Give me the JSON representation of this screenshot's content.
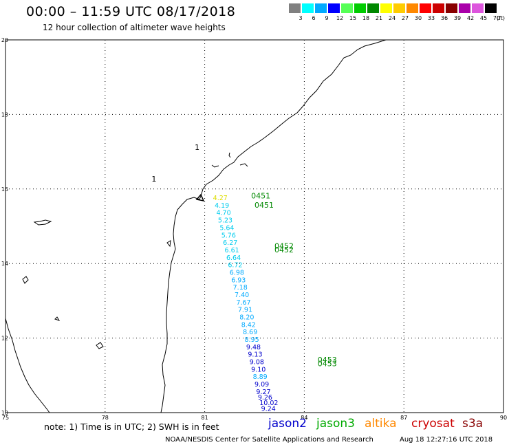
{
  "header": {
    "title": "00:00 – 11:59 UTC 08/17/2018",
    "subtitle": "12 hour collection of altimeter wave heights"
  },
  "legend": {
    "unit": "(ft)",
    "bins": [
      {
        "label": "3",
        "color": "#808080"
      },
      {
        "label": "6",
        "color": "#00ffff"
      },
      {
        "label": "9",
        "color": "#00aaff"
      },
      {
        "label": "12",
        "color": "#0000ff"
      },
      {
        "label": "15",
        "color": "#55ff55"
      },
      {
        "label": "18",
        "color": "#00cc00"
      },
      {
        "label": "21",
        "color": "#008800"
      },
      {
        "label": "24",
        "color": "#ffff00"
      },
      {
        "label": "27",
        "color": "#ffcc00"
      },
      {
        "label": "30",
        "color": "#ff8800"
      },
      {
        "label": "33",
        "color": "#ff0000"
      },
      {
        "label": "36",
        "color": "#cc0000"
      },
      {
        "label": "39",
        "color": "#880000"
      },
      {
        "label": "42",
        "color": "#aa00aa"
      },
      {
        "label": "45",
        "color": "#dd55dd"
      },
      {
        "label": "70",
        "color": "#000000"
      }
    ]
  },
  "map": {
    "lon_range": [
      75,
      90
    ],
    "lat_range": [
      10,
      20
    ],
    "lon_ticks": [
      "75",
      "78",
      "81",
      "84",
      "87",
      "90"
    ],
    "lat_ticks": [
      "10",
      "12",
      "14",
      "16",
      "18",
      "20"
    ],
    "grid": "dotted",
    "track_labels": [
      {
        "text": "0451",
        "lon": 82.4,
        "lat": 15.75,
        "color": "#008800"
      },
      {
        "text": "0451",
        "lon": 82.5,
        "lat": 15.5,
        "color": "#008800"
      },
      {
        "text": "0452",
        "lon": 83.1,
        "lat": 14.4,
        "color": "#008800"
      },
      {
        "text": "0452",
        "lon": 83.1,
        "lat": 14.3,
        "color": "#008800"
      },
      {
        "text": "0453",
        "lon": 84.4,
        "lat": 11.35,
        "color": "#008800"
      },
      {
        "text": "0453",
        "lon": 84.4,
        "lat": 11.25,
        "color": "#008800"
      }
    ],
    "point_label": {
      "text": "1",
      "lon": 79.4,
      "lat": 16.2
    }
  },
  "track": {
    "satellite": "jason2",
    "points": [
      {
        "lon": 81.25,
        "lat": 15.7,
        "value": "4.27",
        "color": "#dddd00"
      },
      {
        "lon": 81.3,
        "lat": 15.5,
        "value": "4.19",
        "color": "#00ccee"
      },
      {
        "lon": 81.35,
        "lat": 15.3,
        "value": "4.70",
        "color": "#00ccee"
      },
      {
        "lon": 81.4,
        "lat": 15.1,
        "value": "5.23",
        "color": "#00ccee"
      },
      {
        "lon": 81.45,
        "lat": 14.9,
        "value": "5.64",
        "color": "#00ccee"
      },
      {
        "lon": 81.5,
        "lat": 14.7,
        "value": "5.76",
        "color": "#00ccee"
      },
      {
        "lon": 81.55,
        "lat": 14.5,
        "value": "6.27",
        "color": "#00ccee"
      },
      {
        "lon": 81.6,
        "lat": 14.3,
        "value": "6.61",
        "color": "#00ccee"
      },
      {
        "lon": 81.65,
        "lat": 14.1,
        "value": "6.64",
        "color": "#00ccee"
      },
      {
        "lon": 81.7,
        "lat": 13.9,
        "value": "6.72",
        "color": "#00ccee"
      },
      {
        "lon": 81.75,
        "lat": 13.7,
        "value": "6.98",
        "color": "#00aaff"
      },
      {
        "lon": 81.8,
        "lat": 13.5,
        "value": "6.93",
        "color": "#00aaff"
      },
      {
        "lon": 81.85,
        "lat": 13.3,
        "value": "7.18",
        "color": "#00aaff"
      },
      {
        "lon": 81.9,
        "lat": 13.1,
        "value": "7.40",
        "color": "#00aaff"
      },
      {
        "lon": 81.95,
        "lat": 12.9,
        "value": "7.67",
        "color": "#00aaff"
      },
      {
        "lon": 82.0,
        "lat": 12.7,
        "value": "7.91",
        "color": "#00aaff"
      },
      {
        "lon": 82.05,
        "lat": 12.5,
        "value": "8.20",
        "color": "#00aaff"
      },
      {
        "lon": 82.1,
        "lat": 12.3,
        "value": "8.42",
        "color": "#00aaff"
      },
      {
        "lon": 82.15,
        "lat": 12.1,
        "value": "8.69",
        "color": "#00aaff"
      },
      {
        "lon": 82.2,
        "lat": 11.9,
        "value": "8.95",
        "color": "#00aaff"
      },
      {
        "lon": 82.25,
        "lat": 11.7,
        "value": "9.48",
        "color": "#0000cc"
      },
      {
        "lon": 82.3,
        "lat": 11.5,
        "value": "9.13",
        "color": "#0000cc"
      },
      {
        "lon": 82.35,
        "lat": 11.3,
        "value": "9.08",
        "color": "#0000cc"
      },
      {
        "lon": 82.4,
        "lat": 11.1,
        "value": "9.10",
        "color": "#0000cc"
      },
      {
        "lon": 82.45,
        "lat": 10.9,
        "value": "8.89",
        "color": "#00aaff"
      },
      {
        "lon": 82.5,
        "lat": 10.7,
        "value": "9.09",
        "color": "#0000cc"
      },
      {
        "lon": 82.55,
        "lat": 10.5,
        "value": "9.27",
        "color": "#0000cc"
      },
      {
        "lon": 82.6,
        "lat": 10.35,
        "value": "9.26",
        "color": "#0000cc"
      },
      {
        "lon": 82.65,
        "lat": 10.2,
        "value": "10.02",
        "color": "#0000cc"
      },
      {
        "lon": 82.7,
        "lat": 10.05,
        "value": "9.24",
        "color": "#0000cc"
      }
    ]
  },
  "footer": {
    "note": "note:  1) Time is in UTC;  2) SWH is in feet",
    "satellites": [
      {
        "name": "jason2",
        "color": "#0000cc"
      },
      {
        "name": "jason3",
        "color": "#00aa00"
      },
      {
        "name": "altika",
        "color": "#ff8800"
      },
      {
        "name": "cryosat",
        "color": "#cc0000"
      },
      {
        "name": "s3a",
        "color": "#880000"
      }
    ],
    "credit": "NOAA/NESDIS Center for Satellite Applications and Research",
    "timestamp": "Aug 18 12:27:16 UTC 2018"
  }
}
